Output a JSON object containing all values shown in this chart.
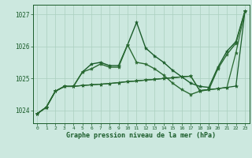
{
  "background_color": "#cce8df",
  "grid_color": "#aacfbf",
  "line_color1": "#1a5c2a",
  "line_color2": "#2d7a3a",
  "xlabel": "Graphe pression niveau de la mer (hPa)",
  "xlim": [
    -0.5,
    23.5
  ],
  "ylim": [
    1023.6,
    1027.3
  ],
  "yticks": [
    1024,
    1025,
    1026,
    1027
  ],
  "xticks": [
    0,
    1,
    2,
    3,
    4,
    5,
    6,
    7,
    8,
    9,
    10,
    11,
    12,
    13,
    14,
    15,
    16,
    17,
    18,
    19,
    20,
    21,
    22,
    23
  ],
  "series": [
    {
      "y": [
        1023.9,
        1024.1,
        1024.6,
        1024.75,
        1024.75,
        1025.2,
        1025.45,
        1025.5,
        1025.4,
        1025.4,
        1026.05,
        1026.75,
        1025.95,
        1025.7,
        1025.5,
        1025.25,
        1025.05,
        1024.85,
        1024.75,
        1024.72,
        1025.35,
        1025.85,
        1026.15,
        1027.1
      ],
      "color": "#1a5c2a",
      "lw": 1.0
    },
    {
      "y": [
        1023.9,
        1024.1,
        1024.6,
        1024.75,
        1024.75,
        1025.2,
        1025.3,
        1025.45,
        1025.35,
        1025.35,
        1026.05,
        1025.5,
        1025.45,
        1025.3,
        1025.1,
        1024.85,
        1024.65,
        1024.5,
        1024.6,
        1024.65,
        1025.3,
        1025.75,
        1026.1,
        1027.1
      ],
      "color": "#2a6a32",
      "lw": 1.0
    },
    {
      "y": [
        1023.9,
        1024.1,
        1024.6,
        1024.75,
        1024.75,
        1024.78,
        1024.8,
        1024.82,
        1024.84,
        1024.87,
        1024.9,
        1024.92,
        1024.95,
        1024.97,
        1025.0,
        1025.02,
        1025.05,
        1025.07,
        1024.62,
        1024.65,
        1024.68,
        1024.72,
        1024.76,
        1027.1
      ],
      "color": "#1a5c2a",
      "lw": 0.9
    },
    {
      "y": [
        1023.9,
        1024.1,
        1024.6,
        1024.75,
        1024.75,
        1024.78,
        1024.8,
        1024.82,
        1024.84,
        1024.87,
        1024.9,
        1024.92,
        1024.95,
        1024.97,
        1025.0,
        1025.02,
        1025.05,
        1025.07,
        1024.62,
        1024.65,
        1024.68,
        1024.72,
        1025.8,
        1027.1
      ],
      "color": "#2a6a32",
      "lw": 0.9
    }
  ]
}
